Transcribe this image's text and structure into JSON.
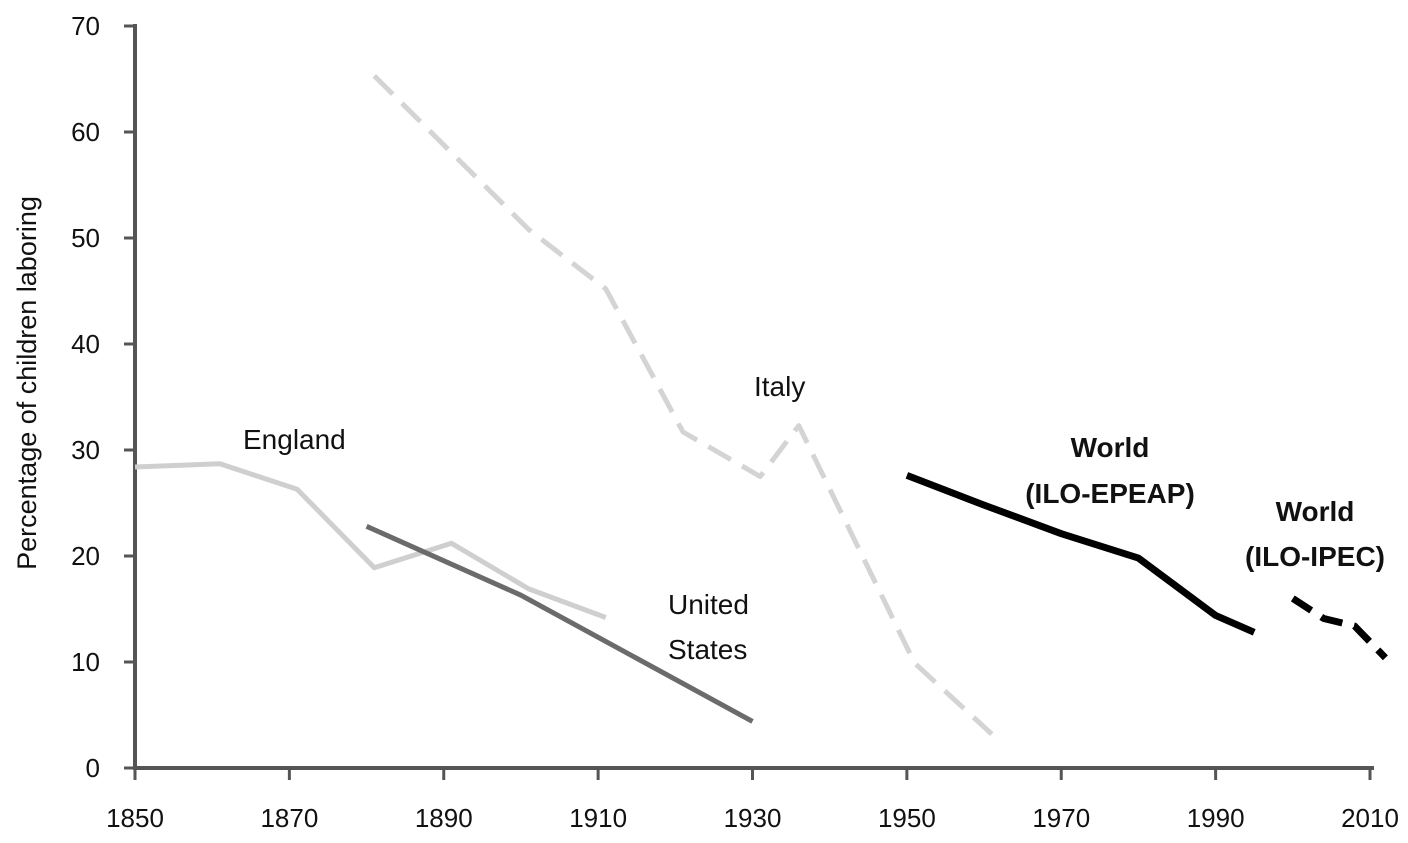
{
  "chart_data": {
    "type": "line",
    "title": "",
    "xlabel": "",
    "ylabel": "Percentage of children laboring",
    "xlim": [
      1850,
      2010
    ],
    "ylim": [
      0,
      70
    ],
    "xticks": [
      1850,
      1870,
      1890,
      1910,
      1930,
      1950,
      1970,
      1990,
      2010
    ],
    "yticks": [
      0,
      10,
      20,
      30,
      40,
      50,
      60,
      70
    ],
    "grid": false,
    "legend": "none (series labeled directly on chart)",
    "series": [
      {
        "name": "England",
        "label_lines": [
          "England"
        ],
        "color": "#cfcfcf",
        "dash": "solid",
        "width": 5,
        "bold_label": false,
        "x": [
          1850,
          1861,
          1871,
          1881,
          1891,
          1901,
          1911
        ],
        "y": [
          28.4,
          28.7,
          26.3,
          18.9,
          21.2,
          16.9,
          14.2
        ]
      },
      {
        "name": "United States",
        "label_lines": [
          "United",
          "States"
        ],
        "color": "#6b6b6b",
        "dash": "solid",
        "width": 5,
        "bold_label": false,
        "x": [
          1880,
          1900,
          1930
        ],
        "y": [
          22.8,
          16.3,
          4.4
        ]
      },
      {
        "name": "Italy",
        "label_lines": [
          "Italy"
        ],
        "color": "#d4d4d4",
        "dash": "dashed",
        "width": 5,
        "bold_label": false,
        "x": [
          1881,
          1901,
          1911,
          1921,
          1931,
          1936,
          1951,
          1961
        ],
        "y": [
          65.3,
          50.8,
          45.2,
          31.7,
          27.5,
          32.3,
          9.9,
          3.2
        ]
      },
      {
        "name": "World (ILO-EPEAP)",
        "label_lines": [
          "World",
          "(ILO-EPEAP)"
        ],
        "color": "#000000",
        "dash": "solid",
        "width": 7,
        "bold_label": true,
        "x": [
          1950,
          1960,
          1970,
          1980,
          1990,
          1995
        ],
        "y": [
          27.6,
          24.8,
          22.1,
          19.8,
          14.4,
          12.8
        ]
      },
      {
        "name": "World (ILO-IPEC)",
        "label_lines": [
          "World",
          "(ILO-IPEC)"
        ],
        "color": "#000000",
        "dash": "dashed",
        "width": 7,
        "bold_label": true,
        "x": [
          2000,
          2004,
          2008,
          2012
        ],
        "y": [
          16.0,
          14.1,
          13.4,
          10.4
        ]
      }
    ]
  }
}
